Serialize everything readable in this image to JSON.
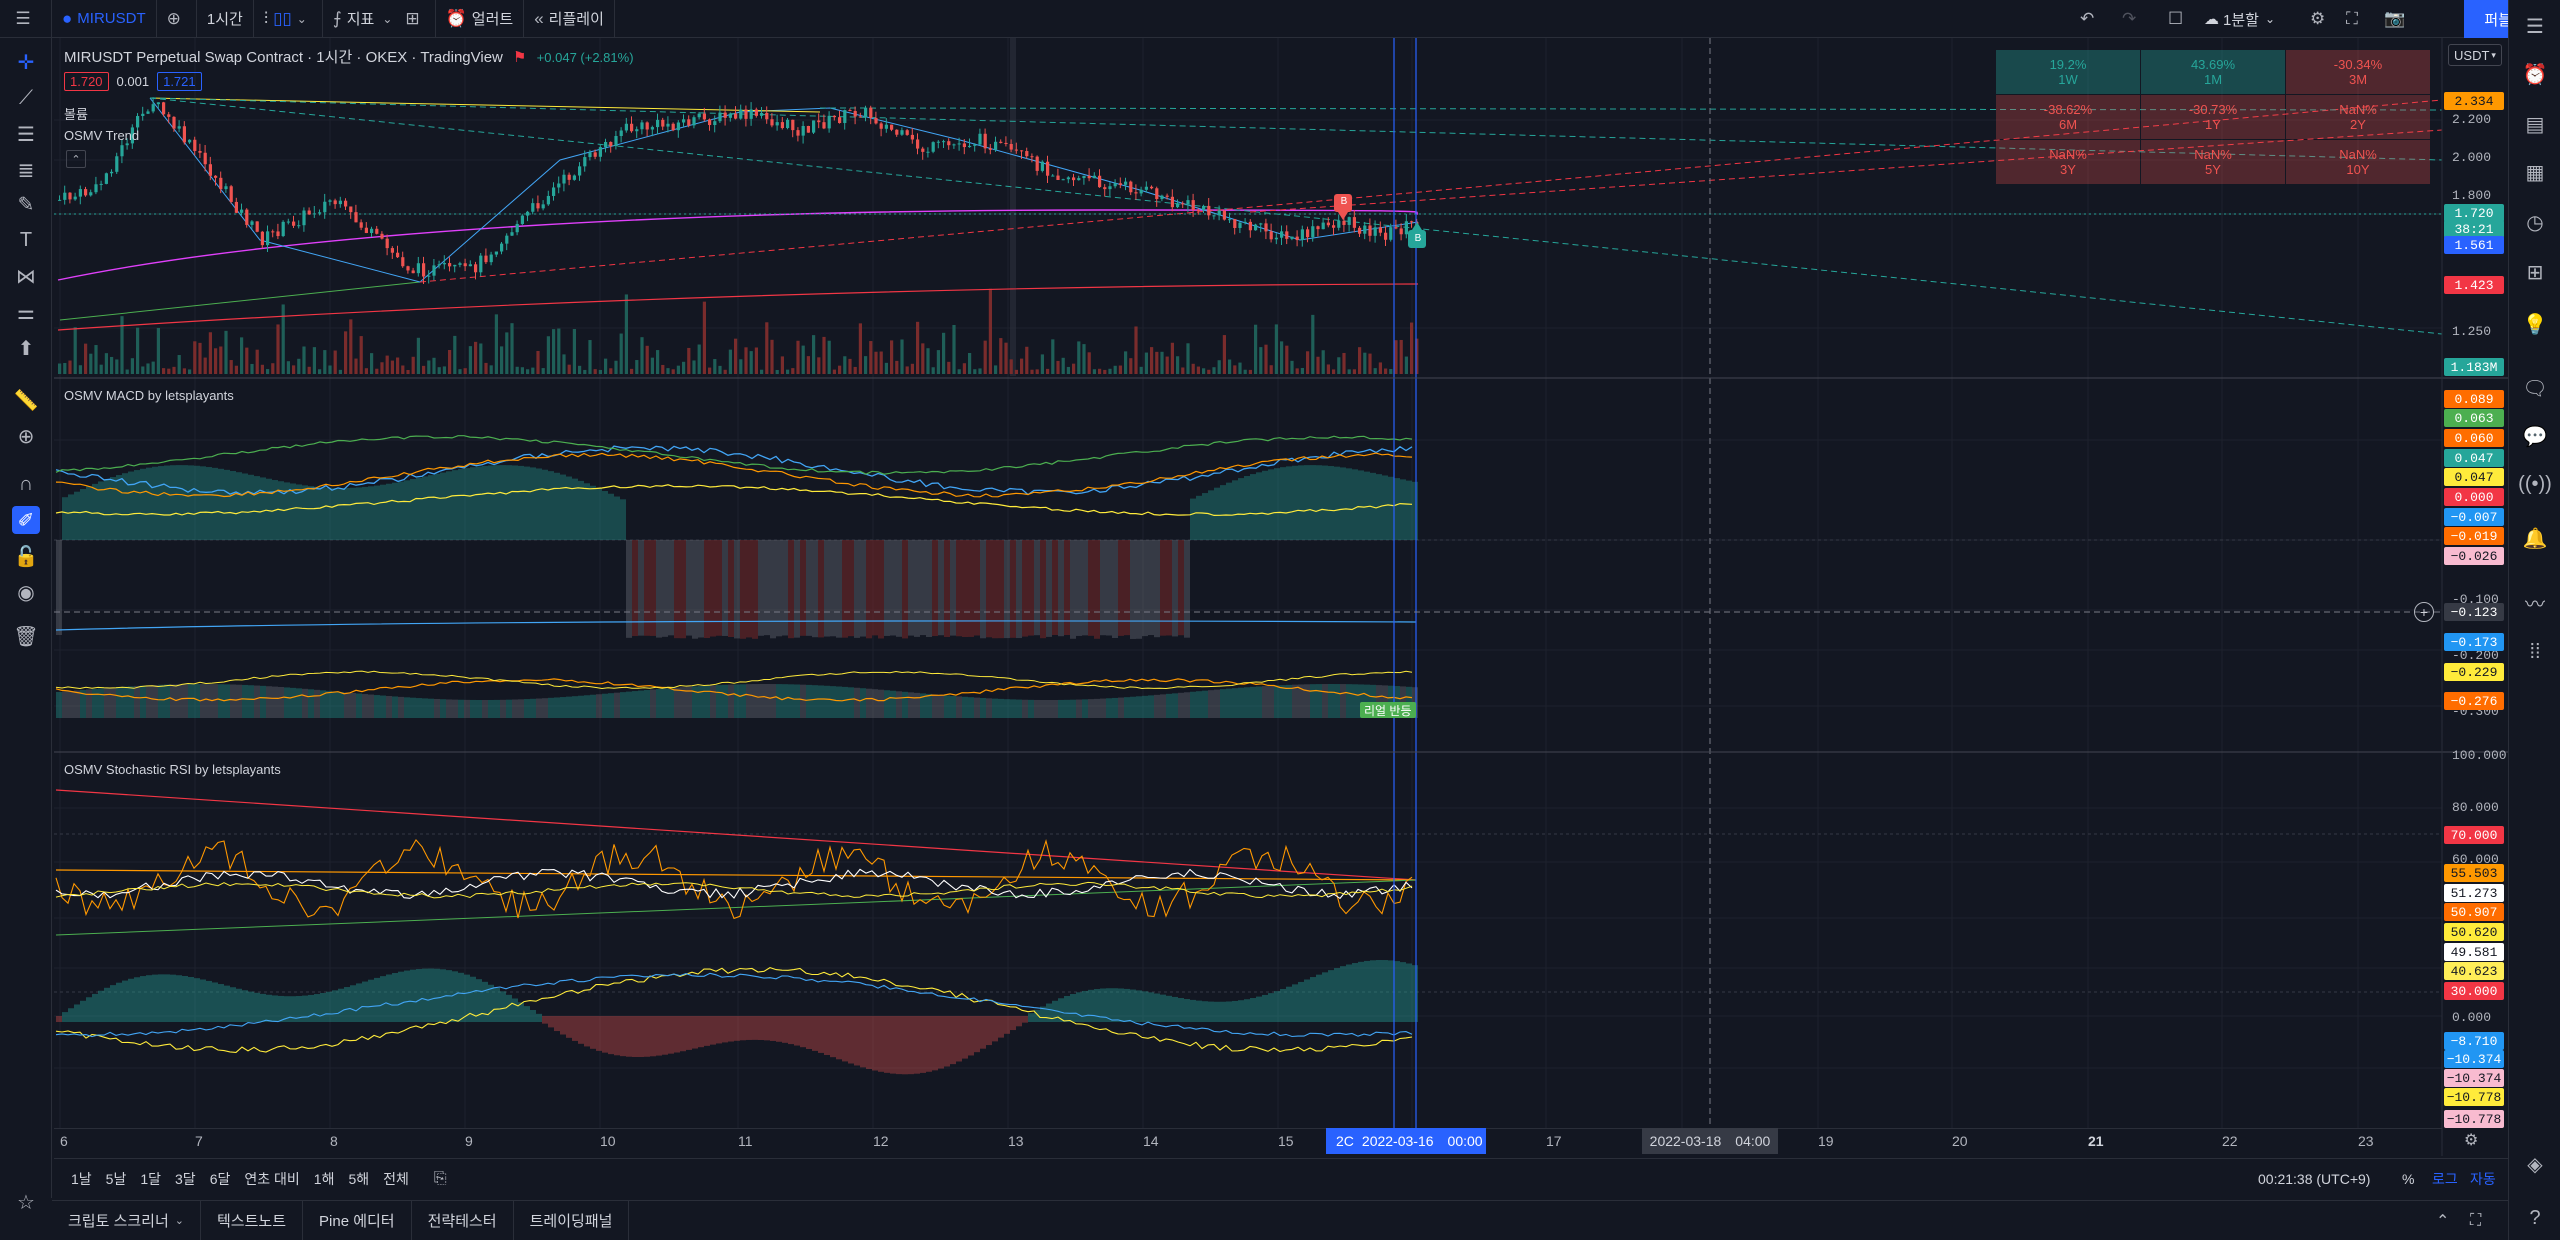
{
  "topbar": {
    "symbol": "MIRUSDT",
    "interval": "1시간",
    "indicators": "지표",
    "alert": "얼러트",
    "replay": "리플레이",
    "layout": "1분할",
    "publish": "퍼블리쉬"
  },
  "legend": {
    "title": "MIRUSDT Perpetual Swap Contract · 1시간 · OKEX · TradingView",
    "change": "+0.047 (+2.81%)",
    "bid": "1.720",
    "spread": "0.001",
    "ask": "1.721",
    "volume_label": "볼륨",
    "trend_label": "OSMV Trend"
  },
  "currency": "USDT",
  "perf": [
    {
      "value": "19.2%",
      "period": "1W",
      "type": "pos"
    },
    {
      "value": "43.69%",
      "period": "1M",
      "type": "pos"
    },
    {
      "value": "-30.34%",
      "period": "3M",
      "type": "neg"
    },
    {
      "value": "-38.62%",
      "period": "6M",
      "type": "neg"
    },
    {
      "value": "-30.73%",
      "period": "1Y",
      "type": "neg"
    },
    {
      "value": "NaN%",
      "period": "2Y",
      "type": "neg"
    },
    {
      "value": "NaN%",
      "period": "3Y",
      "type": "neg"
    },
    {
      "value": "NaN%",
      "period": "5Y",
      "type": "neg"
    },
    {
      "value": "NaN%",
      "period": "10Y",
      "type": "neg"
    }
  ],
  "main_scale": {
    "ticks": [
      "2.200",
      "2.000",
      "1.800",
      "1.250"
    ],
    "labels": [
      {
        "text": "2.334",
        "bg": "#ff9800",
        "fg": "#131722"
      },
      {
        "text": "1.720",
        "bg": "#26a69a",
        "fg": "#ffffff"
      },
      {
        "text": "38:21",
        "bg": "#26a69a",
        "fg": "#ffffff"
      },
      {
        "text": "1.561",
        "bg": "#2962ff",
        "fg": "#ffffff"
      },
      {
        "text": "1.423",
        "bg": "#f23645",
        "fg": "#ffffff"
      },
      {
        "text": "1.183M",
        "bg": "#26a69a",
        "fg": "#ffffff"
      }
    ]
  },
  "macd": {
    "title": "OSMV MACD by letsplayants",
    "badge": "리얼 반등",
    "ticks": [
      "-0.100",
      "-0.200",
      "-0.300"
    ],
    "labels": [
      {
        "text": "0.089",
        "bg": "#ff6d00",
        "fg": "#ffffff"
      },
      {
        "text": "0.063",
        "bg": "#4caf50",
        "fg": "#ffffff"
      },
      {
        "text": "0.060",
        "bg": "#ff6d00",
        "fg": "#ffffff"
      },
      {
        "text": "0.047",
        "bg": "#26a69a",
        "fg": "#ffffff"
      },
      {
        "text": "0.047",
        "bg": "#ffeb3b",
        "fg": "#131722"
      },
      {
        "text": "0.000",
        "bg": "#f23645",
        "fg": "#ffffff"
      },
      {
        "text": "−0.007",
        "bg": "#2196f3",
        "fg": "#ffffff"
      },
      {
        "text": "−0.019",
        "bg": "#ff6d00",
        "fg": "#ffffff"
      },
      {
        "text": "−0.026",
        "bg": "#f8bbd0",
        "fg": "#131722"
      },
      {
        "text": "−0.123",
        "bg": "#363a45",
        "fg": "#ffffff"
      },
      {
        "text": "−0.173",
        "bg": "#2196f3",
        "fg": "#ffffff"
      },
      {
        "text": "−0.229",
        "bg": "#ffeb3b",
        "fg": "#131722"
      },
      {
        "text": "−0.276",
        "bg": "#ff6d00",
        "fg": "#ffffff"
      }
    ]
  },
  "rsi": {
    "title": "OSMV Stochastic RSI by letsplayants",
    "ticks": [
      "100.000",
      "80.000",
      "60.000",
      "0.000"
    ],
    "labels": [
      {
        "text": "70.000",
        "bg": "#f23645",
        "fg": "#ffffff"
      },
      {
        "text": "55.503",
        "bg": "#ff9800",
        "fg": "#131722"
      },
      {
        "text": "51.273",
        "bg": "#ffffff",
        "fg": "#131722"
      },
      {
        "text": "50.907",
        "bg": "#ff6d00",
        "fg": "#ffffff"
      },
      {
        "text": "50.620",
        "bg": "#ffeb3b",
        "fg": "#131722"
      },
      {
        "text": "49.581",
        "bg": "#ffffff",
        "fg": "#131722"
      },
      {
        "text": "40.623",
        "bg": "#ffee58",
        "fg": "#131722"
      },
      {
        "text": "30.000",
        "bg": "#f23645",
        "fg": "#ffffff"
      },
      {
        "text": "−8.710",
        "bg": "#2196f3",
        "fg": "#ffffff"
      },
      {
        "text": "−10.374",
        "bg": "#2196f3",
        "fg": "#ffffff"
      },
      {
        "text": "−10.374",
        "bg": "#f8bbd0",
        "fg": "#131722"
      },
      {
        "text": "−10.778",
        "bg": "#ffeb3b",
        "fg": "#131722"
      },
      {
        "text": "−10.778",
        "bg": "#f8bbd0",
        "fg": "#131722"
      }
    ]
  },
  "time_axis": {
    "labels": [
      "6",
      "7",
      "8",
      "9",
      "10",
      "11",
      "12",
      "13",
      "14",
      "15",
      "17",
      "19",
      "20",
      "21",
      "22",
      "23"
    ],
    "cursor_date": "2022-03-16",
    "cursor_time": "00:00",
    "cursor_prefix": "2C",
    "hover_date": "2022-03-18",
    "hover_time": "04:00"
  },
  "range_bar": {
    "ranges": [
      "1날",
      "5날",
      "1달",
      "3달",
      "6달",
      "연초 대비",
      "1해",
      "5해",
      "전체"
    ],
    "clock": "00:21:38 (UTC+9)",
    "percent": "%",
    "log": "로그",
    "auto": "자동"
  },
  "tabs": [
    "크립토 스크리너",
    "텍스트노트",
    "Pine 에디터",
    "전략테스터",
    "트레이딩패널"
  ],
  "colors": {
    "up": "#26a69a",
    "down": "#ef5350",
    "accent": "#2962ff",
    "background": "#131722"
  },
  "markers": {
    "sell": "B",
    "buy": "B"
  }
}
